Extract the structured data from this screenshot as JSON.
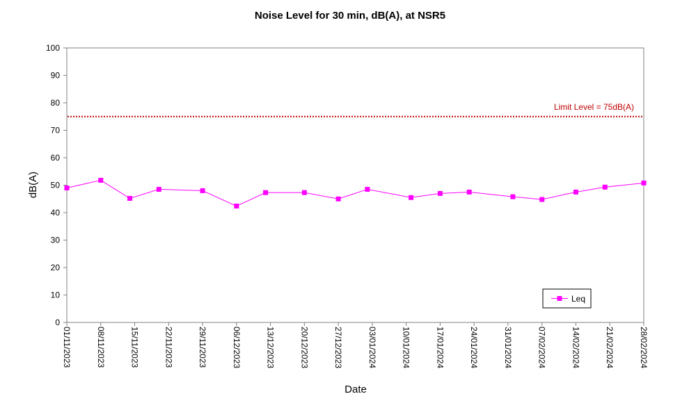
{
  "chart_data": {
    "type": "line",
    "title": "Noise Level for 30 min, dB(A), at NSR5",
    "xlabel": "Date",
    "ylabel": "dB(A)",
    "ylim": [
      0,
      100
    ],
    "y_ticks": [
      0,
      10,
      20,
      30,
      40,
      50,
      60,
      70,
      80,
      90,
      100
    ],
    "x_range": [
      "01/11/2023",
      "28/02/2024"
    ],
    "x_tick_labels": [
      "01/11/2023",
      "08/11/2023",
      "15/11/2023",
      "22/11/2023",
      "29/11/2023",
      "06/12/2023",
      "13/12/2023",
      "20/12/2023",
      "27/12/2023",
      "03/01/2024",
      "10/01/2024",
      "17/01/2024",
      "24/01/2024",
      "31/01/2024",
      "07/02/2024",
      "14/02/2024",
      "21/02/2024",
      "28/02/2024"
    ],
    "grid": false,
    "legend_position": "bottom-right",
    "series": [
      {
        "name": "Leq",
        "color": "#FF00FF",
        "marker": "square",
        "x": [
          "01/11/2023",
          "08/11/2023",
          "14/11/2023",
          "20/11/2023",
          "29/11/2023",
          "06/12/2023",
          "12/12/2023",
          "20/12/2023",
          "27/12/2023",
          "02/01/2024",
          "11/01/2024",
          "17/01/2024",
          "23/01/2024",
          "01/02/2024",
          "07/02/2024",
          "14/02/2024",
          "20/02/2024",
          "28/02/2024"
        ],
        "values": [
          49.0,
          51.8,
          45.2,
          48.5,
          48.0,
          42.4,
          47.3,
          47.3,
          45.0,
          48.5,
          45.5,
          47.0,
          47.5,
          45.8,
          44.8,
          47.5,
          49.3,
          50.8
        ]
      }
    ],
    "limit_line": {
      "label": "Limit Level  = 75dB(A)",
      "value": 75,
      "color": "#C00000"
    }
  }
}
